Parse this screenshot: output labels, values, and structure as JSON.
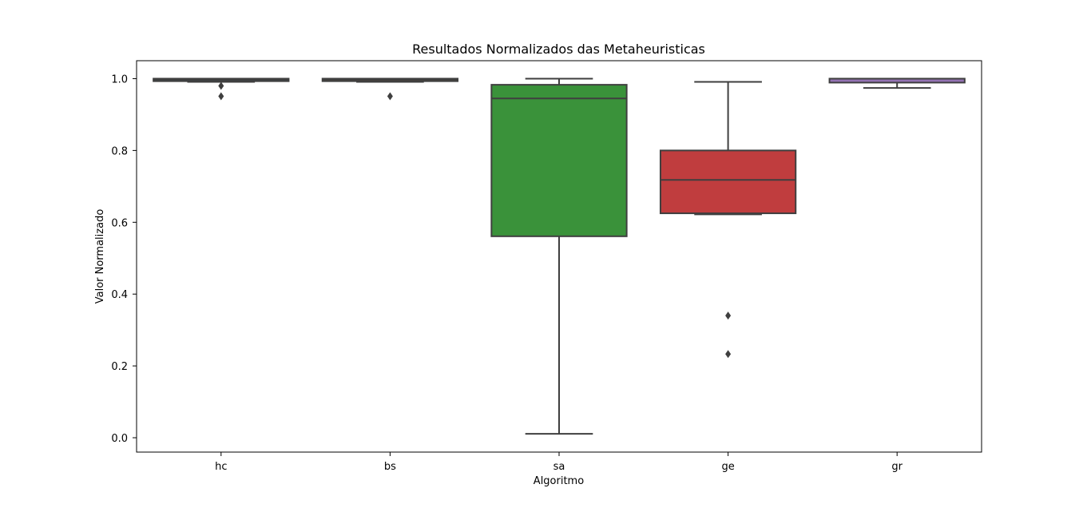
{
  "chart_data": {
    "type": "box",
    "title": "Resultados Normalizados das Metaheuristicas",
    "xlabel": "Algoritmo",
    "ylabel": "Valor Normalizado",
    "ylim": [
      -0.04,
      1.05
    ],
    "yticks": [
      0.0,
      0.2,
      0.4,
      0.6,
      0.8,
      1.0
    ],
    "ytick_labels": [
      "0.0",
      "0.2",
      "0.4",
      "0.6",
      "0.8",
      "1.0"
    ],
    "categories": [
      "hc",
      "bs",
      "sa",
      "ge",
      "gr"
    ],
    "grid": false,
    "series": [
      {
        "category": "hc",
        "color": "#3274a1",
        "whisker_low": 0.991,
        "q1": 0.993,
        "median": 0.997,
        "q3": 1.0,
        "whisker_high": 1.0,
        "outliers": [
          0.98,
          0.951
        ]
      },
      {
        "category": "bs",
        "color": "#e1812c",
        "whisker_low": 0.991,
        "q1": 0.993,
        "median": 0.997,
        "q3": 1.0,
        "whisker_high": 1.0,
        "outliers": [
          0.951
        ]
      },
      {
        "category": "sa",
        "color": "#3a923a",
        "whisker_low": 0.011,
        "q1": 0.561,
        "median": 0.945,
        "q3": 0.983,
        "whisker_high": 1.0,
        "outliers": []
      },
      {
        "category": "ge",
        "color": "#c03d3e",
        "whisker_low": 0.622,
        "q1": 0.625,
        "median": 0.718,
        "q3": 0.8,
        "whisker_high": 0.991,
        "outliers": [
          0.34,
          0.233
        ]
      },
      {
        "category": "gr",
        "color": "#9372b2",
        "whisker_low": 0.974,
        "q1": 0.989,
        "median": 1.0,
        "q3": 1.0,
        "whisker_high": 1.0,
        "outliers": []
      }
    ]
  }
}
